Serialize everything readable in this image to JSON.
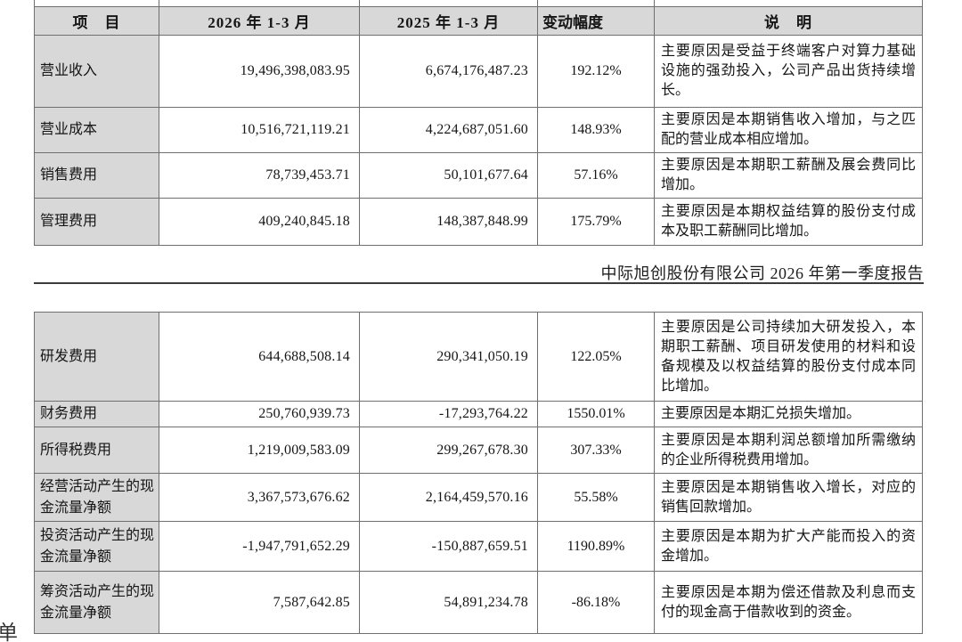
{
  "page": {
    "report_title": "中际旭创股份有限公司 2026 年第一季度报告",
    "margin_fragment": "单"
  },
  "colors": {
    "header_bg": "#d8d8d8",
    "label_bg": "#d8d8d8",
    "border": "#6f6f6f",
    "rule": "#3c3c3c",
    "text": "#151515"
  },
  "columns": [
    "项　目",
    "2026 年 1-3 月",
    "2025 年 1-3 月",
    "变动幅度",
    "说　明"
  ],
  "table1": {
    "rows": [
      {
        "item": "营业收入",
        "v2026": "19,496,398,083.95",
        "v2025": "6,674,176,487.23",
        "change": "192.12%",
        "note": "主要原因是受益于终端客户对算力基础设施的强劲投入，公司产品出货持续增长。"
      },
      {
        "item": "营业成本",
        "v2026": "10,516,721,119.21",
        "v2025": "4,224,687,051.60",
        "change": "148.93%",
        "note": "主要原因是本期销售收入增加，与之匹配的营业成本相应增加。"
      },
      {
        "item": "销售费用",
        "v2026": "78,739,453.71",
        "v2025": "50,101,677.64",
        "change": "57.16%",
        "note": "主要原因是本期职工薪酬及展会费同比增加。"
      },
      {
        "item": "管理费用",
        "v2026": "409,240,845.18",
        "v2025": "148,387,848.99",
        "change": "175.79%",
        "note": "主要原因是本期权益结算的股份支付成本及职工薪酬同比增加。"
      }
    ]
  },
  "table2": {
    "rows": [
      {
        "item": "研发费用",
        "v2026": "644,688,508.14",
        "v2025": "290,341,050.19",
        "change": "122.05%",
        "note": "主要原因是公司持续加大研发投入，本期职工薪酬、项目研发使用的材料和设备规模及以权益结算的股份支付成本同比增加。"
      },
      {
        "item": "财务费用",
        "v2026": "250,760,939.73",
        "v2025": "-17,293,764.22",
        "change": "1550.01%",
        "note": "主要原因是本期汇兑损失增加。"
      },
      {
        "item": "所得税费用",
        "v2026": "1,219,009,583.09",
        "v2025": "299,267,678.30",
        "change": "307.33%",
        "note": "主要原因是本期利润总额增加所需缴纳的企业所得税费用增加。"
      },
      {
        "item": "经营活动产生的现金流量净额",
        "v2026": "3,367,573,676.62",
        "v2025": "2,164,459,570.16",
        "change": "55.58%",
        "note": "主要原因是本期销售收入增长，对应的销售回款增加。"
      },
      {
        "item": "投资活动产生的现金流量净额",
        "v2026": "-1,947,791,652.29",
        "v2025": "-150,887,659.51",
        "change": "1190.89%",
        "note": "主要原因是本期为扩大产能而投入的资金增加。"
      },
      {
        "item": "筹资活动产生的现金流量净额",
        "v2026": "7,587,642.85",
        "v2025": "54,891,234.78",
        "change": "-86.18%",
        "note": "主要原因是本期为偿还借款及利息而支付的现金高于借款收到的资金。"
      }
    ]
  }
}
